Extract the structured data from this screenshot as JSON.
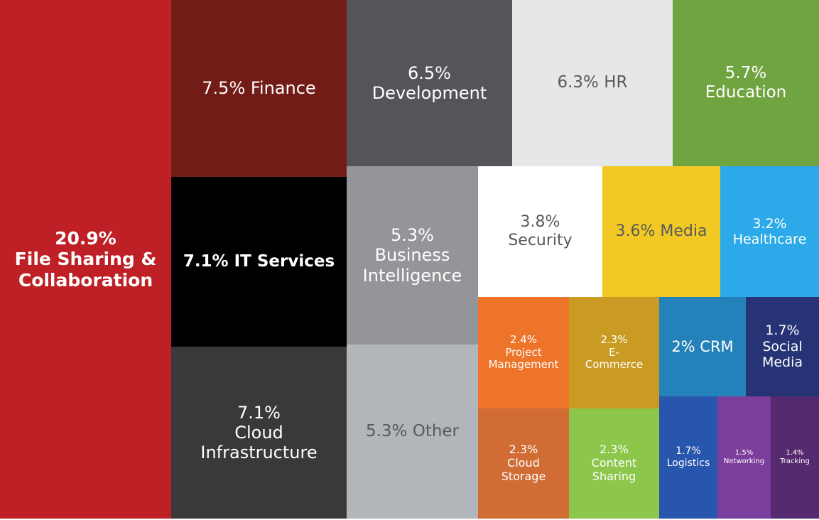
{
  "chart_data": {
    "type": "treemap",
    "unit": "%",
    "items": [
      {
        "label": "File Sharing & Collaboration",
        "value": 20.9,
        "lines": [
          "20.9%",
          "File Sharing &",
          "Collaboration"
        ],
        "color": "#be2026",
        "text_color": "#ffffff"
      },
      {
        "label": "Finance",
        "value": 7.5,
        "lines": [
          "7.5% Finance"
        ],
        "color": "#721c17",
        "text_color": "#ffffff"
      },
      {
        "label": "IT Services",
        "value": 7.1,
        "lines": [
          "7.1% IT Services"
        ],
        "color": "#000000",
        "text_color": "#ffffff"
      },
      {
        "label": "Cloud Infrastructure",
        "value": 7.1,
        "lines": [
          "7.1%",
          "Cloud",
          "Infrastructure"
        ],
        "color": "#393939",
        "text_color": "#ffffff"
      },
      {
        "label": "Development",
        "value": 6.5,
        "lines": [
          "6.5%",
          "Development"
        ],
        "color": "#545558",
        "text_color": "#ffffff"
      },
      {
        "label": "HR",
        "value": 6.3,
        "lines": [
          "6.3% HR"
        ],
        "color": "#e6e7e8",
        "text_color": "#58595b"
      },
      {
        "label": "Education",
        "value": 5.7,
        "lines": [
          "5.7%",
          "Education"
        ],
        "color": "#70a441",
        "text_color": "#ffffff"
      },
      {
        "label": "Business Intelligence",
        "value": 5.3,
        "lines": [
          "5.3%",
          "Business",
          "Intelligence"
        ],
        "color": "#939598",
        "text_color": "#ffffff"
      },
      {
        "label": "Other",
        "value": 5.3,
        "lines": [
          "5.3% Other"
        ],
        "color": "#b1b6bb",
        "text_color": "#58595b"
      },
      {
        "label": "Security",
        "value": 3.8,
        "lines": [
          "3.8%",
          "Security"
        ],
        "color": "#ffffff",
        "text_color": "#58595b"
      },
      {
        "label": "Media",
        "value": 3.6,
        "lines": [
          "3.6% Media"
        ],
        "color": "#f2c924",
        "text_color": "#58595b"
      },
      {
        "label": "Healthcare",
        "value": 3.2,
        "lines": [
          "3.2%",
          "Healthcare"
        ],
        "color": "#2ba9e8",
        "text_color": "#ffffff"
      },
      {
        "label": "Project Management",
        "value": 2.4,
        "lines": [
          "2.4%",
          "Project",
          "Management"
        ],
        "color": "#ee7429",
        "text_color": "#ffffff"
      },
      {
        "label": "E-Commerce",
        "value": 2.3,
        "lines": [
          "2.3%",
          "E-",
          "Commerce"
        ],
        "color": "#c99b22",
        "text_color": "#ffffff"
      },
      {
        "label": "CRM",
        "value": 2.0,
        "lines": [
          "2% CRM"
        ],
        "color": "#2581b9",
        "text_color": "#ffffff"
      },
      {
        "label": "Social Media",
        "value": 1.7,
        "lines": [
          "1.7%",
          "Social",
          "Media"
        ],
        "color": "#263475",
        "text_color": "#ffffff"
      },
      {
        "label": "Cloud Storage",
        "value": 2.3,
        "lines": [
          "2.3%",
          "Cloud",
          "Storage"
        ],
        "color": "#d06c34",
        "text_color": "#ffffff"
      },
      {
        "label": "Content Sharing",
        "value": 2.3,
        "lines": [
          "2.3%",
          "Content",
          "Sharing"
        ],
        "color": "#8cc64b",
        "text_color": "#ffffff"
      },
      {
        "label": "Logistics",
        "value": 1.7,
        "lines": [
          "1.7%",
          "Logistics"
        ],
        "color": "#2856ac",
        "text_color": "#ffffff"
      },
      {
        "label": "Networking",
        "value": 1.5,
        "lines": [
          "1.5%",
          "Networking"
        ],
        "color": "#7c3e9c",
        "text_color": "#ffffff"
      },
      {
        "label": "Tracking",
        "value": 1.4,
        "lines": [
          "1.4%",
          "Tracking"
        ],
        "color": "#562a6f",
        "text_color": "#ffffff"
      }
    ]
  }
}
